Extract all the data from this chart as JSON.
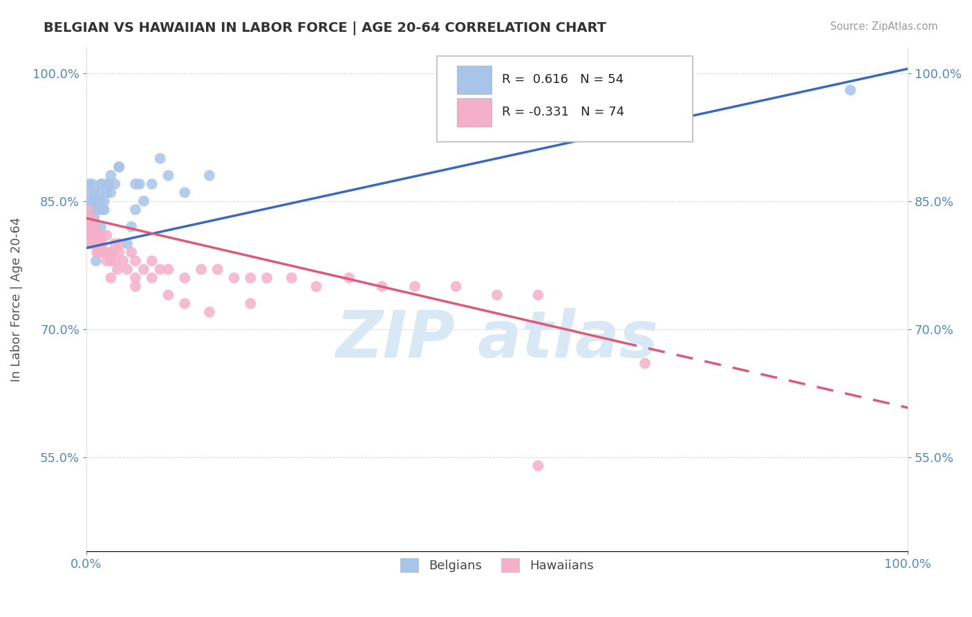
{
  "title": "BELGIAN VS HAWAIIAN IN LABOR FORCE | AGE 20-64 CORRELATION CHART",
  "source_text": "Source: ZipAtlas.com",
  "ylabel": "In Labor Force | Age 20-64",
  "xlim": [
    0.0,
    1.0
  ],
  "ylim": [
    0.44,
    1.03
  ],
  "x_ticks": [
    0.0,
    1.0
  ],
  "x_tick_labels": [
    "0.0%",
    "100.0%"
  ],
  "y_ticks": [
    0.55,
    0.7,
    0.85,
    1.0
  ],
  "y_tick_labels": [
    "55.0%",
    "70.0%",
    "85.0%",
    "100.0%"
  ],
  "legend_r_blue": "0.616",
  "legend_n_blue": "54",
  "legend_r_pink": "-0.331",
  "legend_n_pink": "74",
  "blue_color": "#a8c4e8",
  "pink_color": "#f4b0c8",
  "trendline_blue": "#3a6abf",
  "trendline_pink": "#e05878",
  "watermark_color": "#d8e8f5",
  "title_color": "#333333",
  "axis_label_color": "#555555",
  "tick_color": "#5588bb",
  "grid_color": "#bbbbbb",
  "background_color": "#ffffff",
  "belgians_x": [
    0.001,
    0.002,
    0.002,
    0.003,
    0.003,
    0.004,
    0.004,
    0.005,
    0.005,
    0.006,
    0.006,
    0.007,
    0.007,
    0.008,
    0.008,
    0.009,
    0.009,
    0.01,
    0.01,
    0.011,
    0.011,
    0.012,
    0.012,
    0.013,
    0.014,
    0.015,
    0.016,
    0.017,
    0.018,
    0.019,
    0.02,
    0.022,
    0.025,
    0.028,
    0.03,
    0.035,
    0.04,
    0.05,
    0.06,
    0.07,
    0.08,
    0.1,
    0.12,
    0.15,
    0.03,
    0.025,
    0.04,
    0.055,
    0.065,
    0.09,
    0.018,
    0.022,
    0.93,
    0.06
  ],
  "belgians_y": [
    0.82,
    0.84,
    0.83,
    0.85,
    0.86,
    0.87,
    0.83,
    0.84,
    0.82,
    0.85,
    0.83,
    0.84,
    0.87,
    0.83,
    0.82,
    0.85,
    0.84,
    0.83,
    0.86,
    0.82,
    0.84,
    0.78,
    0.81,
    0.84,
    0.85,
    0.84,
    0.86,
    0.85,
    0.82,
    0.87,
    0.84,
    0.85,
    0.86,
    0.87,
    0.86,
    0.87,
    0.89,
    0.8,
    0.87,
    0.85,
    0.87,
    0.88,
    0.86,
    0.88,
    0.88,
    0.87,
    0.89,
    0.82,
    0.87,
    0.9,
    0.87,
    0.84,
    0.98,
    0.84
  ],
  "hawaiians_x": [
    0.001,
    0.002,
    0.003,
    0.003,
    0.004,
    0.005,
    0.005,
    0.006,
    0.007,
    0.007,
    0.008,
    0.008,
    0.009,
    0.009,
    0.01,
    0.01,
    0.011,
    0.012,
    0.013,
    0.014,
    0.015,
    0.016,
    0.017,
    0.018,
    0.02,
    0.022,
    0.025,
    0.028,
    0.03,
    0.032,
    0.035,
    0.038,
    0.04,
    0.045,
    0.05,
    0.055,
    0.06,
    0.07,
    0.08,
    0.09,
    0.1,
    0.12,
    0.14,
    0.16,
    0.18,
    0.2,
    0.22,
    0.25,
    0.28,
    0.32,
    0.36,
    0.4,
    0.45,
    0.5,
    0.55,
    0.03,
    0.06,
    0.1,
    0.15,
    0.2,
    0.003,
    0.008,
    0.015,
    0.025,
    0.04,
    0.06,
    0.08,
    0.12,
    0.55,
    0.68,
    0.005,
    0.012,
    0.02,
    0.035
  ],
  "hawaiians_y": [
    0.83,
    0.84,
    0.82,
    0.83,
    0.82,
    0.83,
    0.8,
    0.81,
    0.82,
    0.83,
    0.82,
    0.81,
    0.8,
    0.82,
    0.81,
    0.82,
    0.81,
    0.8,
    0.79,
    0.8,
    0.79,
    0.81,
    0.8,
    0.81,
    0.79,
    0.79,
    0.78,
    0.79,
    0.78,
    0.79,
    0.78,
    0.77,
    0.79,
    0.78,
    0.77,
    0.79,
    0.78,
    0.77,
    0.78,
    0.77,
    0.77,
    0.76,
    0.77,
    0.77,
    0.76,
    0.76,
    0.76,
    0.76,
    0.75,
    0.76,
    0.75,
    0.75,
    0.75,
    0.74,
    0.74,
    0.76,
    0.75,
    0.74,
    0.72,
    0.73,
    0.81,
    0.8,
    0.8,
    0.81,
    0.8,
    0.76,
    0.76,
    0.73,
    0.54,
    0.66,
    0.81,
    0.81,
    0.8,
    0.8
  ],
  "trendline_blue_x0": 0.0,
  "trendline_blue_x1": 1.0,
  "trendline_blue_y0": 0.795,
  "trendline_blue_y1": 1.005,
  "trendline_pink_x0": 0.0,
  "trendline_pink_x1": 0.65,
  "trendline_pink_y0": 0.83,
  "trendline_pink_y1": 0.685,
  "trendline_pink_dash_x0": 0.65,
  "trendline_pink_dash_x1": 1.0,
  "trendline_pink_dash_y0": 0.685,
  "trendline_pink_dash_y1": 0.608
}
